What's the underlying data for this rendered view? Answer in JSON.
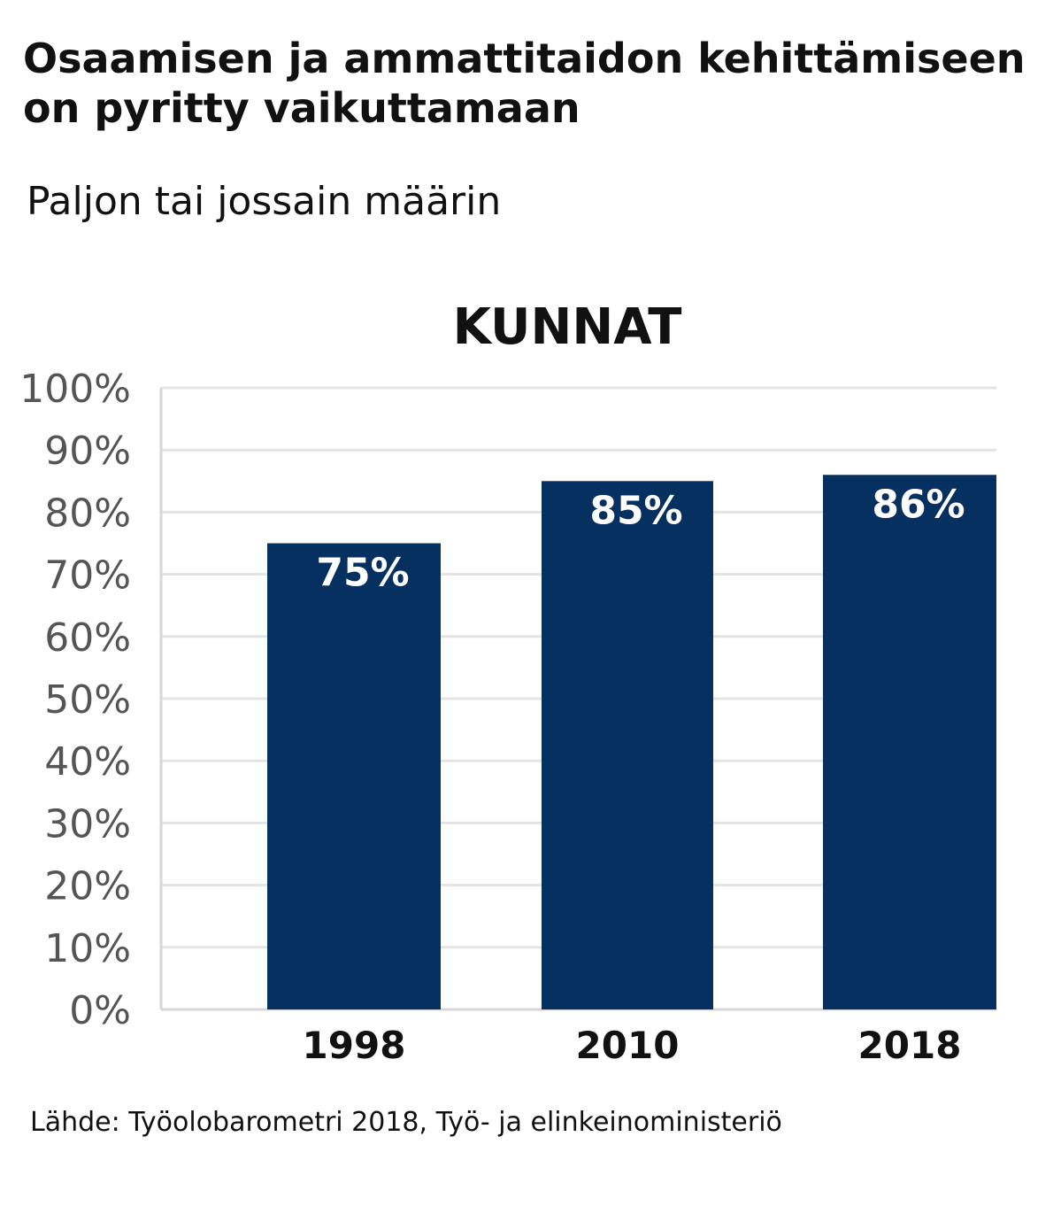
{
  "header": {
    "title": "Osaamisen ja ammattitaidon kehittämiseen on pyritty vaikuttamaan",
    "subtitle": "Paljon tai jossain määrin"
  },
  "footer": {
    "source": "Lähde: Työolobarometri 2018, Työ- ja elinkeinoministeriö"
  },
  "chart_data": {
    "type": "bar",
    "title": "KUNNAT",
    "xlabel": "",
    "ylabel": "",
    "categories": [
      "1998",
      "2010",
      "2018"
    ],
    "values": [
      75,
      85,
      86
    ],
    "data_labels": [
      "75%",
      "85%",
      "86%"
    ],
    "ylim": [
      0,
      100
    ],
    "yticks": [
      0,
      10,
      20,
      30,
      40,
      50,
      60,
      70,
      80,
      90,
      100
    ],
    "ytick_labels": [
      "0%",
      "10%",
      "20%",
      "30%",
      "40%",
      "50%",
      "60%",
      "70%",
      "80%",
      "90%",
      "100%"
    ],
    "grid": true,
    "legend": "none",
    "colors": {
      "bar": "#05305f",
      "grid": "#e3e3e3",
      "axis": "#d6d6d6"
    }
  }
}
